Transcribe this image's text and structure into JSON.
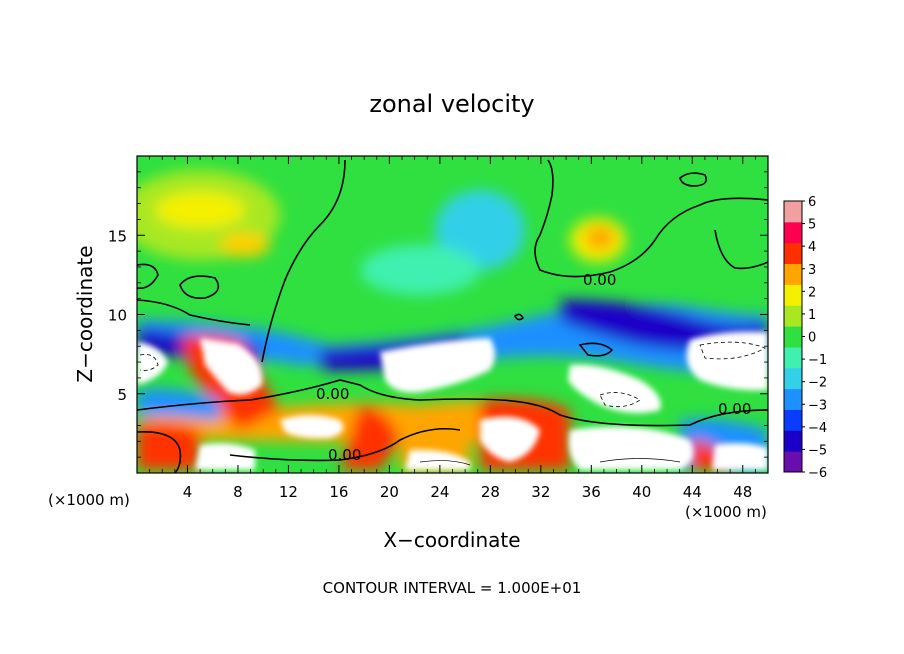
{
  "chart_data": {
    "type": "heatmap",
    "title": "zonal velocity",
    "xlabel": "X−coordinate",
    "ylabel": "Z−coordinate",
    "x_unit_left": "(×1000 m)",
    "x_unit_right": "(×1000 m)",
    "footer": "CONTOUR INTERVAL = 1.000E+01",
    "xlim": [
      0,
      50
    ],
    "ylim": [
      0,
      20
    ],
    "x_ticks": [
      4,
      8,
      12,
      16,
      20,
      24,
      28,
      32,
      36,
      40,
      44,
      48
    ],
    "y_ticks": [
      5,
      10,
      15
    ],
    "colorbar": {
      "range": [
        -6,
        6
      ],
      "ticks": [
        "6",
        "5",
        "4",
        "3",
        "2",
        "1",
        "0",
        "−1",
        "−2",
        "−3",
        "−4",
        "−5",
        "−6"
      ],
      "stops": [
        "#6a0dad",
        "#1a00c8",
        "#0a3cff",
        "#1e90ff",
        "#33d0e8",
        "#40f0b0",
        "#2fe040",
        "#a8e820",
        "#f5f000",
        "#ffa500",
        "#ff3000",
        "#ff0050",
        "#f0a0a0"
      ]
    },
    "contour_labels": [
      "0.00",
      "0.00",
      "0.00",
      "0.00"
    ],
    "colors": {
      "background_field": "#2fe040",
      "saturated": "#ffffff",
      "contour": "#000000"
    }
  }
}
